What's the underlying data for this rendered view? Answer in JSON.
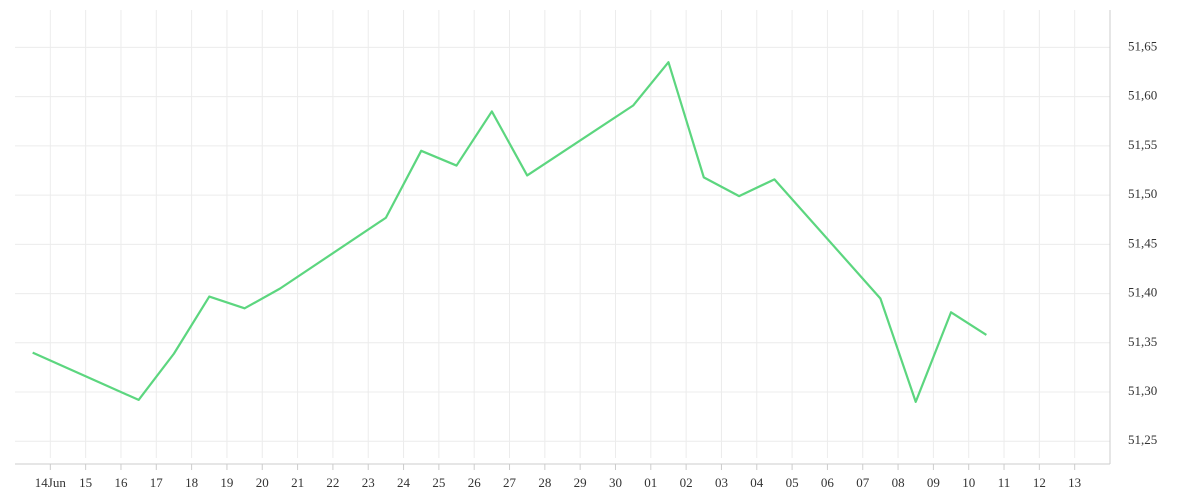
{
  "chart_data": {
    "type": "line",
    "x": [
      -0.5,
      2.5,
      3.5,
      4.5,
      5.5,
      6.5,
      9.5,
      10.5,
      11.5,
      12.5,
      13.5,
      16.5,
      17.5,
      18.5,
      19.5,
      20.5,
      23.5,
      24.5,
      25.5,
      26.5
    ],
    "series": [
      {
        "color": "#5cd67f",
        "values": [
          51.34,
          51.292,
          51.339,
          51.397,
          51.385,
          51.405,
          51.477,
          51.545,
          51.53,
          51.585,
          51.52,
          51.591,
          51.635,
          51.518,
          51.499,
          51.516,
          51.395,
          51.29,
          51.381,
          51.358
        ]
      }
    ],
    "xlim": [
      -1,
      30
    ],
    "xticks": [
      {
        "value": 0,
        "label": "14Jun"
      },
      {
        "value": 1,
        "label": "15"
      },
      {
        "value": 2,
        "label": "16"
      },
      {
        "value": 3,
        "label": "17"
      },
      {
        "value": 4,
        "label": "18"
      },
      {
        "value": 5,
        "label": "19"
      },
      {
        "value": 6,
        "label": "20"
      },
      {
        "value": 7,
        "label": "21"
      },
      {
        "value": 8,
        "label": "22"
      },
      {
        "value": 9,
        "label": "23"
      },
      {
        "value": 10,
        "label": "24"
      },
      {
        "value": 11,
        "label": "25"
      },
      {
        "value": 12,
        "label": "26"
      },
      {
        "value": 13,
        "label": "27"
      },
      {
        "value": 14,
        "label": "28"
      },
      {
        "value": 15,
        "label": "29"
      },
      {
        "value": 16,
        "label": "30"
      },
      {
        "value": 17,
        "label": "01"
      },
      {
        "value": 18,
        "label": "02"
      },
      {
        "value": 19,
        "label": "03"
      },
      {
        "value": 20,
        "label": "04"
      },
      {
        "value": 21,
        "label": "05"
      },
      {
        "value": 22,
        "label": "06"
      },
      {
        "value": 23,
        "label": "07"
      },
      {
        "value": 24,
        "label": "08"
      },
      {
        "value": 25,
        "label": "09"
      },
      {
        "value": 26,
        "label": "10"
      },
      {
        "value": 27,
        "label": "11"
      },
      {
        "value": 28,
        "label": "12"
      },
      {
        "value": 29,
        "label": "13"
      }
    ],
    "ylim": [
      51.233,
      51.688
    ],
    "yticks": [
      {
        "value": 51.25,
        "label": "51,25"
      },
      {
        "value": 51.3,
        "label": "51,30"
      },
      {
        "value": 51.35,
        "label": "51,35"
      },
      {
        "value": 51.4,
        "label": "51,40"
      },
      {
        "value": 51.45,
        "label": "51,45"
      },
      {
        "value": 51.5,
        "label": "51,50"
      },
      {
        "value": 51.55,
        "label": "51,55"
      },
      {
        "value": 51.6,
        "label": "51,60"
      },
      {
        "value": 51.65,
        "label": "51,65"
      }
    ],
    "grid": true
  }
}
